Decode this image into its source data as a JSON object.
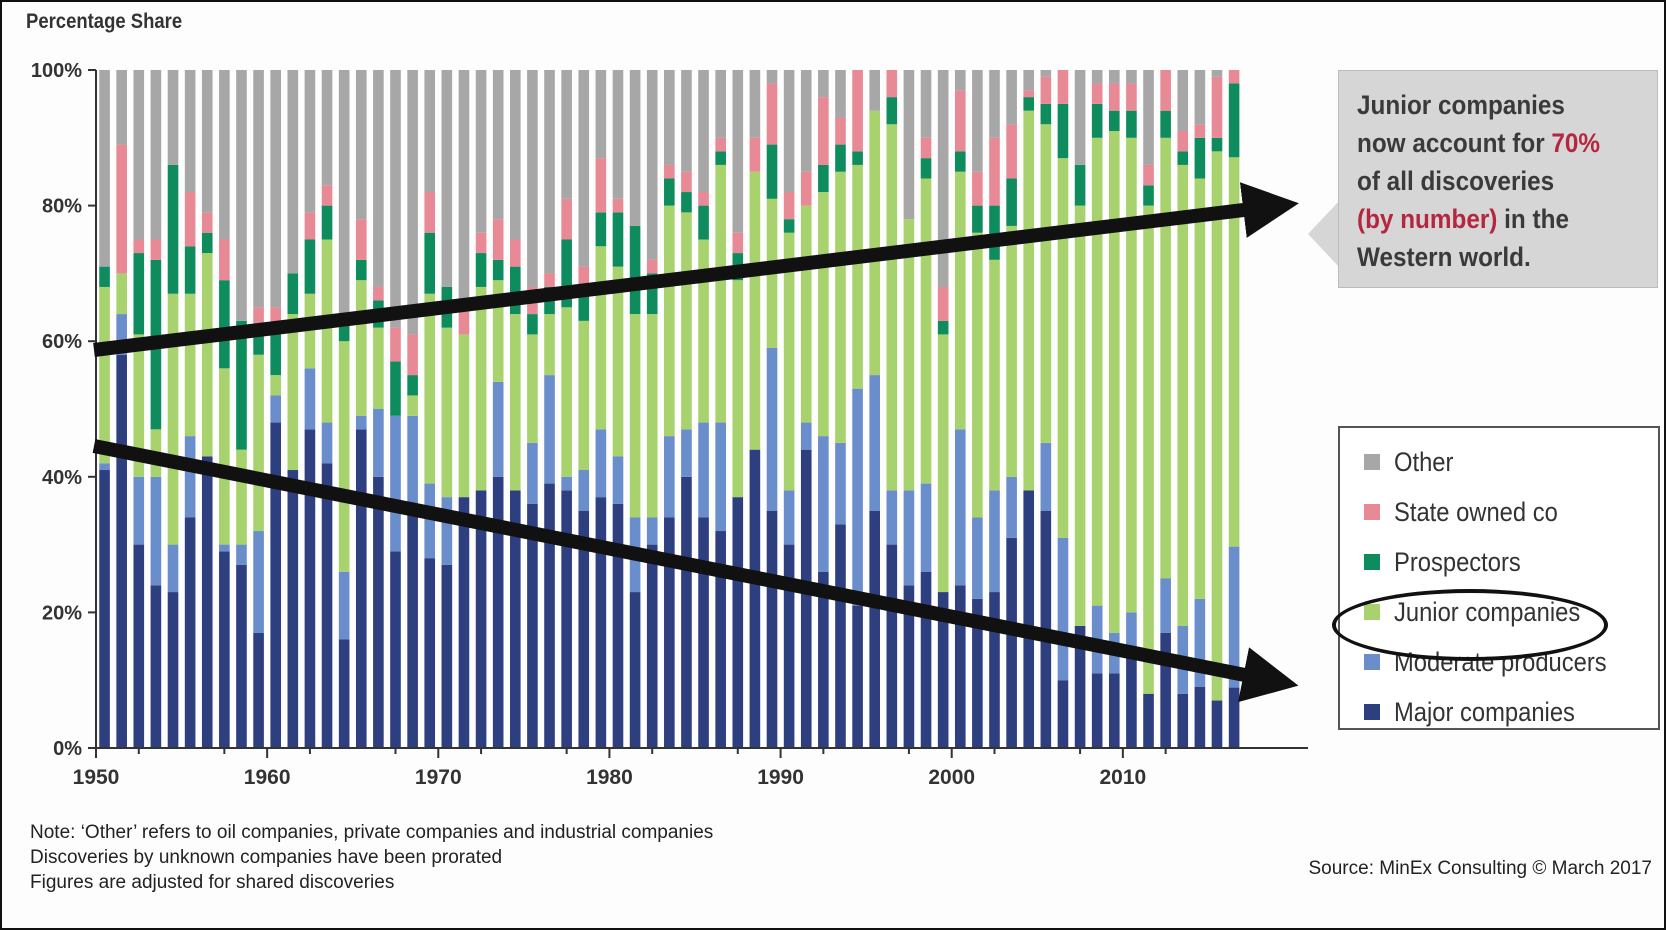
{
  "chart_data": {
    "type": "bar",
    "stacked": true,
    "ylabel": "Percentage Share",
    "ylim": [
      0,
      100
    ],
    "ytick_labels": [
      "0%",
      "20%",
      "40%",
      "60%",
      "80%",
      "100%"
    ],
    "xtick_labels": [
      "1950",
      "1960",
      "1970",
      "1980",
      "1990",
      "2000",
      "2010"
    ],
    "categories": [
      1950,
      1951,
      1952,
      1953,
      1954,
      1955,
      1956,
      1957,
      1958,
      1959,
      1960,
      1961,
      1962,
      1963,
      1964,
      1965,
      1966,
      1967,
      1968,
      1969,
      1970,
      1971,
      1972,
      1973,
      1974,
      1975,
      1976,
      1977,
      1978,
      1979,
      1980,
      1981,
      1982,
      1983,
      1984,
      1985,
      1986,
      1987,
      1988,
      1989,
      1990,
      1991,
      1992,
      1993,
      1994,
      1995,
      1996,
      1997,
      1998,
      1999,
      2000,
      2001,
      2002,
      2003,
      2004,
      2005,
      2006,
      2007,
      2008,
      2009,
      2010,
      2011,
      2012,
      2013,
      2014,
      2015,
      2016
    ],
    "series": [
      {
        "name": "Major companies",
        "color": "#2e3f80",
        "values": [
          41,
          58,
          30,
          24,
          23,
          34,
          43,
          29,
          27,
          17,
          48,
          41,
          47,
          42,
          16,
          47,
          40,
          29,
          36,
          28,
          27,
          37,
          38,
          40,
          38,
          36,
          39,
          38,
          35,
          37,
          36,
          23,
          30,
          34,
          40,
          34,
          32,
          37,
          44,
          35,
          30,
          44,
          26,
          33,
          21,
          35,
          30,
          24,
          26,
          23,
          24,
          22,
          23,
          31,
          38,
          35,
          10,
          18,
          11,
          11,
          14,
          8,
          17,
          8,
          9,
          7,
          9
        ]
      },
      {
        "name": "Moderate producers",
        "color": "#6a8dcb",
        "values": [
          1,
          6,
          10,
          16,
          7,
          12,
          0,
          1,
          3,
          15,
          4,
          0,
          9,
          6,
          10,
          2,
          10,
          20,
          13,
          11,
          10,
          0,
          0,
          14,
          0,
          9,
          16,
          2,
          6,
          10,
          7,
          11,
          4,
          12,
          7,
          14,
          16,
          0,
          0,
          24,
          8,
          4,
          20,
          12,
          32,
          20,
          8,
          14,
          13,
          0,
          23,
          12,
          15,
          9,
          0,
          10,
          21,
          0,
          10,
          6,
          6,
          0,
          8,
          10,
          13,
          0,
          21
        ]
      },
      {
        "name": "Junior companies",
        "color": "#a8d26e",
        "values": [
          26,
          6,
          21,
          7,
          37,
          21,
          30,
          26,
          14,
          26,
          3,
          23,
          11,
          27,
          34,
          20,
          12,
          0,
          3,
          28,
          25,
          24,
          30,
          15,
          26,
          16,
          9,
          25,
          22,
          27,
          28,
          30,
          30,
          34,
          32,
          27,
          38,
          32,
          41,
          22,
          38,
          32,
          36,
          40,
          33,
          39,
          54,
          40,
          45,
          38,
          38,
          42,
          34,
          37,
          56,
          47,
          56,
          62,
          69,
          74,
          70,
          72,
          65,
          68,
          62,
          81,
          58
        ]
      },
      {
        "name": "Prospectors",
        "color": "#0f8c5e",
        "values": [
          3,
          0,
          12,
          25,
          19,
          7,
          3,
          13,
          19,
          3,
          6,
          6,
          8,
          5,
          3,
          3,
          4,
          8,
          3,
          9,
          6,
          0,
          5,
          3,
          7,
          3,
          4,
          10,
          5,
          5,
          8,
          13,
          6,
          4,
          3,
          5,
          2,
          4,
          0,
          8,
          2,
          0,
          4,
          4,
          2,
          0,
          4,
          0,
          3,
          2,
          3,
          4,
          8,
          7,
          2,
          3,
          8,
          6,
          5,
          3,
          4,
          3,
          4,
          2,
          6,
          2,
          11
        ]
      },
      {
        "name": "State owned co",
        "color": "#e88a95",
        "values": [
          0,
          19,
          2,
          3,
          0,
          8,
          3,
          6,
          0,
          4,
          4,
          0,
          4,
          3,
          0,
          6,
          2,
          5,
          6,
          6,
          0,
          4,
          3,
          6,
          4,
          4,
          2,
          6,
          3,
          8,
          2,
          0,
          2,
          2,
          3,
          2,
          2,
          3,
          5,
          9,
          4,
          5,
          10,
          4,
          12,
          0,
          4,
          0,
          3,
          5,
          9,
          5,
          10,
          8,
          1,
          4,
          5,
          0,
          3,
          4,
          4,
          3,
          6,
          3,
          2,
          9,
          2
        ]
      },
      {
        "name": "Other",
        "color": "#a7a7a7",
        "values": [
          29,
          11,
          25,
          25,
          14,
          18,
          21,
          25,
          37,
          35,
          35,
          30,
          21,
          17,
          37,
          22,
          32,
          38,
          39,
          18,
          32,
          35,
          24,
          22,
          25,
          32,
          30,
          19,
          29,
          13,
          19,
          23,
          28,
          14,
          15,
          18,
          10,
          24,
          10,
          2,
          18,
          15,
          4,
          7,
          0,
          6,
          0,
          22,
          10,
          32,
          3,
          15,
          10,
          8,
          3,
          1,
          0,
          14,
          2,
          2,
          2,
          14,
          0,
          9,
          8,
          1,
          0
        ]
      }
    ]
  },
  "callout": {
    "line1": "Junior companies",
    "line2_pre": "now account for ",
    "line2_highlight": "70%",
    "line3": "of all discoveries",
    "line4_highlight": "(by number)",
    "line4_post": " in the",
    "line5": "Western world."
  },
  "legend": [
    "Other",
    "State owned co",
    "Prospectors",
    "Junior companies",
    "Moderate producers",
    "Major companies"
  ],
  "notes": [
    "Note: ‘Other’ refers to oil companies, private companies and industrial companies",
    "Discoveries by unknown companies have been prorated",
    "Figures are adjusted for shared discoveries"
  ],
  "source": "Source: MinEx Consulting © March 2017"
}
